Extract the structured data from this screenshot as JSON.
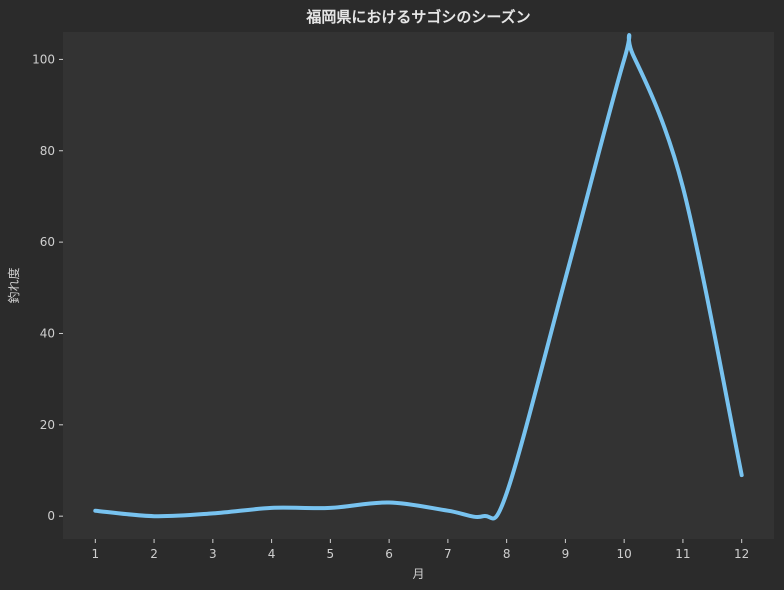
{
  "colors": {
    "figure_background": "#2b2b2b",
    "plot_background": "#333333",
    "text": "#e6e6e6",
    "tick_text": "#cfcfcf",
    "line": "#78c3f0"
  },
  "chart_data": {
    "type": "line",
    "title": "福岡県におけるサゴシのシーズン",
    "xlabel": "月",
    "ylabel": "釣れ度",
    "x_ticks": [
      "1",
      "2",
      "3",
      "4",
      "5",
      "6",
      "7",
      "8",
      "9",
      "10",
      "11",
      "12"
    ],
    "y_ticks": [
      "0",
      "20",
      "40",
      "60",
      "80",
      "100"
    ],
    "xlim": [
      0.45,
      12.55
    ],
    "ylim": [
      -5,
      106
    ],
    "grid": false,
    "legend": "none",
    "smooth": true,
    "series": [
      {
        "x": [
          1,
          2,
          3,
          4,
          5,
          6,
          7,
          7.6,
          8,
          9,
          10,
          10.15,
          11,
          12
        ],
        "y": [
          1.2,
          0,
          0.6,
          1.8,
          1.8,
          3,
          1.2,
          0,
          5,
          52,
          100,
          101,
          72,
          9
        ]
      }
    ]
  }
}
